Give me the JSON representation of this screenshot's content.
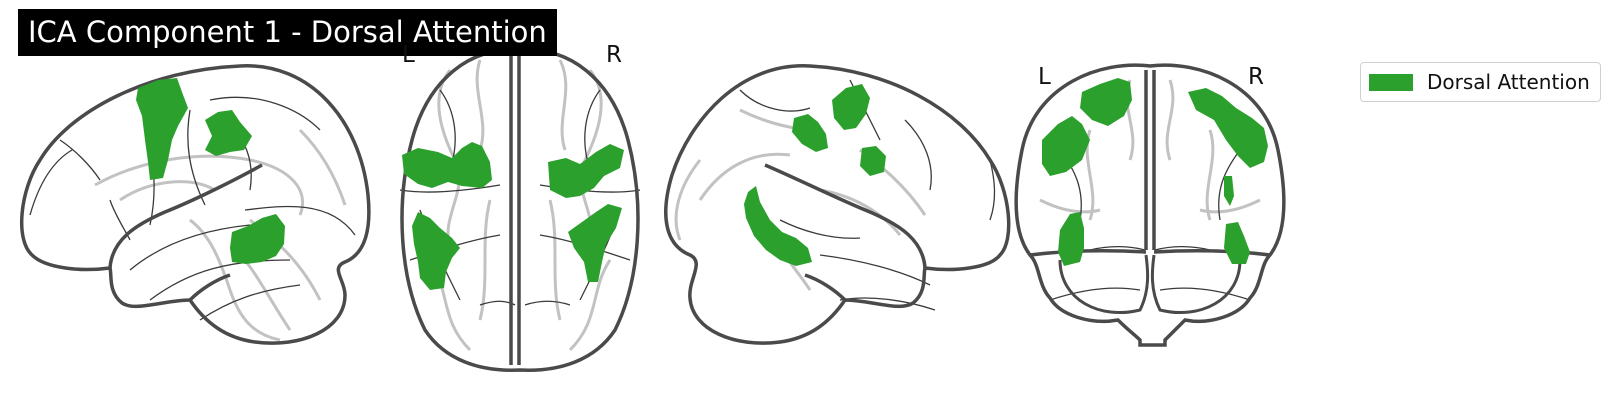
{
  "title": "ICA Component 1 - Dorsal Attention",
  "hemisphere_labels": {
    "axial": {
      "left": "L",
      "right": "R"
    },
    "coronal": {
      "left": "L",
      "right": "R"
    }
  },
  "legend": {
    "label": "Dorsal Attention",
    "color": "#2ca02c"
  },
  "colors": {
    "overlay": "#2ca02c",
    "outline": "#4a4a4a",
    "sulci": "#bdbdbd",
    "title_bg": "#000000",
    "title_text": "#ffffff"
  }
}
